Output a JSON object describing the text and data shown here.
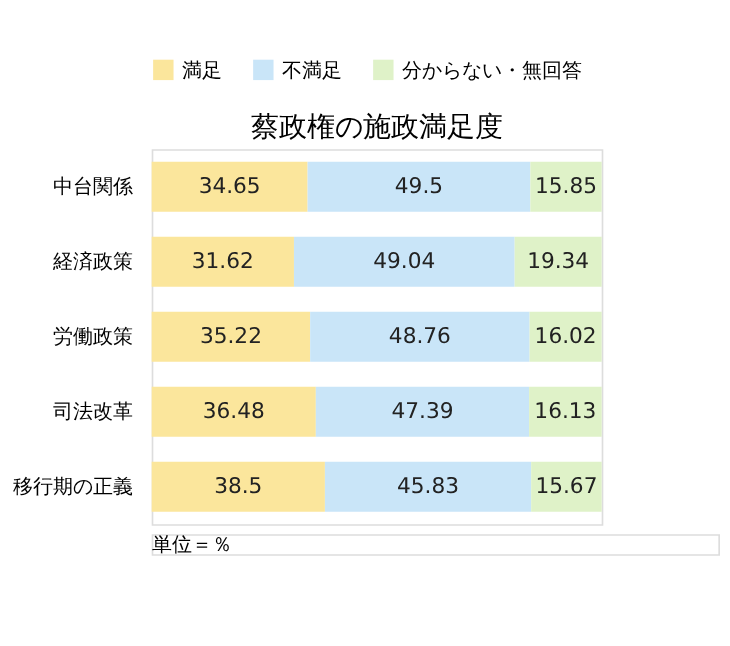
{
  "chart_data": {
    "type": "bar",
    "orientation": "horizontal",
    "stacked": true,
    "title": "蔡政権の施政満足度",
    "categories": [
      "中台関係",
      "経済政策",
      "労働政策",
      "司法改革",
      "移行期の正義"
    ],
    "series": [
      {
        "name": "満足",
        "color": "#fbe69c",
        "values": [
          34.65,
          31.62,
          35.22,
          36.48,
          38.5
        ]
      },
      {
        "name": "不満足",
        "color": "#c9e5f8",
        "values": [
          49.5,
          49.04,
          48.76,
          47.39,
          45.83
        ]
      },
      {
        "name": "分からない・無回答",
        "color": "#dff2c8",
        "values": [
          15.85,
          19.34,
          16.02,
          16.13,
          15.67
        ]
      }
    ],
    "xlim": [
      0,
      100
    ],
    "data_labels": true,
    "legend": "top",
    "grid": false,
    "annotations": [
      "単位＝％"
    ]
  }
}
